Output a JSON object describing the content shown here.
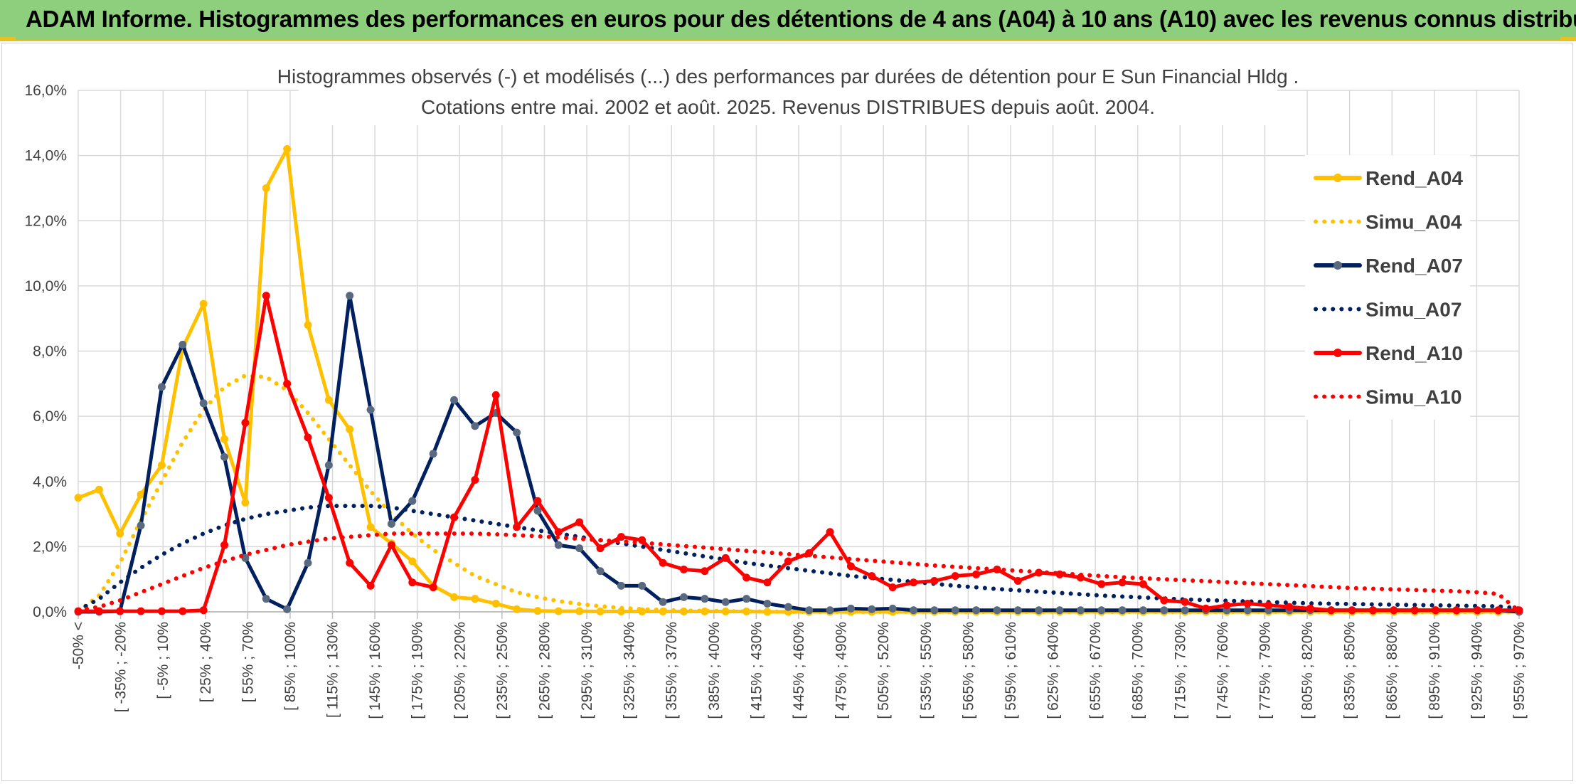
{
  "header": {
    "title": "ADAM Informe. Histogrammes des performances en euros pour des détentions de 4 ans (A04) à 10 ans (A10) avec les revenus connus distribués"
  },
  "chart_data": {
    "type": "line",
    "title_lines": [
      "Histogrammes observés (-) et modélisés (...) des performances par durées de détention pour E Sun Financial Hldg .",
      "Cotations entre mai. 2002 et août. 2025. Revenus DISTRIBUES depuis août. 2004."
    ],
    "ylim": [
      0,
      16
    ],
    "y_ticks": [
      "0,0%",
      "2,0%",
      "4,0%",
      "6,0%",
      "8,0%",
      "10,0%",
      "12,0%",
      "14,0%",
      "16,0%"
    ],
    "x_labels": [
      "-50% <",
      "[ -35% ; -20%",
      "[ -5% ; 10%",
      "[ 25% ; 40%",
      "[ 55% ; 70%",
      "[ 85% ; 100%",
      "[ 115% ; 130%",
      "[ 145% ; 160%",
      "[ 175% ; 190%",
      "[ 205% ; 220%",
      "[ 235% ; 250%",
      "[ 265% ; 280%",
      "[ 295% ; 310%",
      "[ 325% ; 340%",
      "[ 355% ; 370%",
      "[ 385% ; 400%",
      "[ 415% ; 430%",
      "[ 445% ; 460%",
      "[ 475% ; 490%",
      "[ 505% ; 520%",
      "[ 535% ; 550%",
      "[ 565% ; 580%",
      "[ 595% ; 610%",
      "[ 625% ; 640%",
      "[ 655% ; 670%",
      "[ 685% ; 700%",
      "[ 715% ; 730%",
      "[ 745% ; 760%",
      "[ 775% ; 790%",
      "[ 805% ; 820%",
      "[ 835% ; 850%",
      "[ 865% ; 880%",
      "[ 895% ; 910%",
      "[ 925% ; 940%",
      "[ 955% ; 970%"
    ],
    "grid": true,
    "legend_position": "right",
    "series": [
      {
        "name": "Rend_A04",
        "style": "solid",
        "markers": true,
        "color": "#FFC000",
        "values": [
          3.5,
          3.75,
          2.4,
          3.6,
          4.5,
          8.1,
          9.45,
          5.3,
          3.35,
          13.0,
          14.2,
          8.8,
          6.5,
          5.6,
          2.6,
          2.1,
          1.55,
          0.8,
          0.45,
          0.4,
          0.25,
          0.08,
          0.03,
          0.02,
          0.02,
          0.01,
          0.01,
          0.01,
          0.01,
          0.01,
          0.01,
          0.01,
          0.01,
          0.0,
          0.0,
          0.0,
          0.0,
          0.0,
          0.0,
          0.0,
          0.0,
          0.0,
          0.0,
          0.0,
          0.0,
          0.0,
          0.0,
          0.0,
          0.0,
          0.0,
          0.0,
          0.0,
          0.0,
          0.0,
          0.0,
          0.0,
          0.0,
          0.0,
          0.0,
          0.0,
          0.0,
          0.0,
          0.0,
          0.0,
          0.0,
          0.0,
          0.0,
          0.0,
          0.0,
          0.0
        ]
      },
      {
        "name": "Simu_A04",
        "style": "dotted",
        "markers": false,
        "color": "#FFC000",
        "values": [
          0.02,
          0.5,
          1.5,
          2.8,
          4.0,
          5.2,
          6.2,
          6.9,
          7.25,
          7.2,
          6.8,
          6.1,
          5.3,
          4.5,
          3.7,
          3.0,
          2.4,
          1.9,
          1.5,
          1.1,
          0.85,
          0.6,
          0.45,
          0.33,
          0.24,
          0.17,
          0.12,
          0.08,
          0.06,
          0.04,
          0.03,
          0.02,
          0.01,
          0.01,
          0.0,
          0.0,
          0.0,
          0.0,
          0.0,
          0.0,
          0.0,
          0.0,
          0.0,
          0.0,
          0.0,
          0.0,
          0.0,
          0.0,
          0.0,
          0.0,
          0.0,
          0.0,
          0.0,
          0.0,
          0.0,
          0.0,
          0.0,
          0.0,
          0.0,
          0.0,
          0.0,
          0.0,
          0.0,
          0.0,
          0.0,
          0.0,
          0.0,
          0.0,
          0.0,
          0.0
        ]
      },
      {
        "name": "Rend_A07",
        "style": "solid",
        "markers": true,
        "color": "#002060",
        "values": [
          0.0,
          0.0,
          0.02,
          2.65,
          6.9,
          8.2,
          6.4,
          4.75,
          1.65,
          0.4,
          0.08,
          1.5,
          4.5,
          9.7,
          6.2,
          2.7,
          3.4,
          4.85,
          6.5,
          5.7,
          6.1,
          5.5,
          3.1,
          2.05,
          1.95,
          1.25,
          0.8,
          0.8,
          0.3,
          0.45,
          0.4,
          0.3,
          0.4,
          0.25,
          0.15,
          0.05,
          0.05,
          0.1,
          0.08,
          0.1,
          0.05,
          0.05,
          0.05,
          0.05,
          0.05,
          0.05,
          0.05,
          0.05,
          0.05,
          0.05,
          0.05,
          0.05,
          0.05,
          0.05,
          0.05,
          0.05,
          0.05,
          0.05,
          0.05,
          0.05,
          0.05,
          0.05,
          0.05,
          0.05,
          0.05,
          0.05,
          0.05,
          0.05,
          0.05,
          0.0
        ]
      },
      {
        "name": "Simu_A07",
        "style": "dotted",
        "markers": false,
        "color": "#002060",
        "values": [
          0.05,
          0.4,
          0.9,
          1.35,
          1.75,
          2.1,
          2.4,
          2.65,
          2.85,
          3.0,
          3.1,
          3.2,
          3.25,
          3.25,
          3.25,
          3.2,
          3.1,
          3.0,
          2.9,
          2.8,
          2.7,
          2.6,
          2.5,
          2.4,
          2.3,
          2.2,
          2.1,
          2.0,
          1.9,
          1.8,
          1.7,
          1.6,
          1.5,
          1.42,
          1.34,
          1.26,
          1.18,
          1.1,
          1.04,
          0.98,
          0.92,
          0.86,
          0.8,
          0.75,
          0.7,
          0.66,
          0.62,
          0.58,
          0.54,
          0.5,
          0.47,
          0.44,
          0.41,
          0.38,
          0.36,
          0.34,
          0.32,
          0.3,
          0.28,
          0.26,
          0.25,
          0.24,
          0.23,
          0.22,
          0.21,
          0.2,
          0.19,
          0.18,
          0.17,
          0.1
        ]
      },
      {
        "name": "Rend_A10",
        "style": "solid",
        "markers": true,
        "color": "#FF0000",
        "values": [
          0.02,
          0.02,
          0.02,
          0.02,
          0.02,
          0.02,
          0.05,
          2.05,
          5.8,
          9.7,
          7.0,
          5.35,
          3.5,
          1.5,
          0.8,
          2.05,
          0.9,
          0.75,
          2.9,
          4.05,
          6.65,
          2.6,
          3.4,
          2.45,
          2.75,
          1.95,
          2.3,
          2.2,
          1.5,
          1.3,
          1.25,
          1.65,
          1.05,
          0.9,
          1.55,
          1.8,
          2.45,
          1.4,
          1.1,
          0.75,
          0.9,
          0.95,
          1.1,
          1.15,
          1.3,
          0.95,
          1.2,
          1.15,
          1.05,
          0.85,
          0.9,
          0.85,
          0.35,
          0.3,
          0.1,
          0.2,
          0.25,
          0.2,
          0.15,
          0.1,
          0.05,
          0.05,
          0.05,
          0.05,
          0.05,
          0.05,
          0.05,
          0.05,
          0.05,
          0.05
        ]
      },
      {
        "name": "Simu_A10",
        "style": "dotted",
        "markers": false,
        "color": "#FF0000",
        "values": [
          0.05,
          0.15,
          0.35,
          0.6,
          0.85,
          1.1,
          1.35,
          1.55,
          1.75,
          1.9,
          2.05,
          2.15,
          2.25,
          2.3,
          2.35,
          2.4,
          2.4,
          2.4,
          2.4,
          2.4,
          2.38,
          2.35,
          2.32,
          2.28,
          2.24,
          2.2,
          2.16,
          2.12,
          2.07,
          2.02,
          1.97,
          1.92,
          1.87,
          1.82,
          1.77,
          1.72,
          1.67,
          1.62,
          1.57,
          1.52,
          1.47,
          1.42,
          1.38,
          1.34,
          1.3,
          1.26,
          1.22,
          1.18,
          1.14,
          1.1,
          1.06,
          1.03,
          1.0,
          0.97,
          0.94,
          0.91,
          0.88,
          0.85,
          0.82,
          0.79,
          0.76,
          0.73,
          0.71,
          0.69,
          0.67,
          0.65,
          0.63,
          0.6,
          0.55,
          0.02
        ]
      }
    ]
  }
}
